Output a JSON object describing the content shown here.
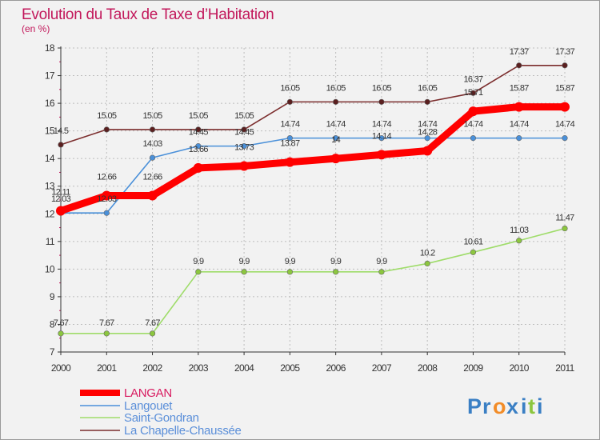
{
  "header": {
    "title": "Evolution du Taux de Taxe d’Habitation",
    "unit": "(en %)"
  },
  "logo": {
    "letters": [
      "P",
      "r",
      "o",
      "x",
      "i",
      "t",
      "i"
    ],
    "colors": [
      "#3a7fc4",
      "#3a7fc4",
      "#f28c28",
      "#3a7fc4",
      "#3a7fc4",
      "#8cc63f",
      "#3a7fc4"
    ]
  },
  "chart_data": {
    "type": "line",
    "title": "Evolution du Taux de Taxe d’Habitation",
    "ylabel": "(en %)",
    "xlabel": "",
    "x": [
      "2000",
      "2001",
      "2002",
      "2003",
      "2004",
      "2005",
      "2006",
      "2007",
      "2008",
      "2009",
      "2010",
      "2011"
    ],
    "ylim": [
      7,
      18
    ],
    "yticks": [
      "7",
      "8",
      "9",
      "10",
      "11",
      "12",
      "13",
      "14",
      "15",
      "16",
      "17",
      "18"
    ],
    "grid": true,
    "legend": "bottom-left",
    "series": [
      {
        "name": "LANGAN",
        "color": "#ff0000",
        "values": [
          12.11,
          12.66,
          12.66,
          13.66,
          13.73,
          13.87,
          14,
          14.14,
          14.28,
          15.71,
          15.87,
          15.87
        ],
        "labels": [
          "12.11",
          "12.66",
          "12.66",
          "13.66",
          "13.73",
          "13.87",
          "14",
          "14.14",
          "14.28",
          "15.71",
          "15.87",
          "15.87"
        ]
      },
      {
        "name": "Langouet",
        "color": "#4a90d9",
        "values": [
          12.03,
          12.03,
          14.03,
          14.45,
          14.45,
          14.74,
          14.74,
          14.74,
          14.74,
          14.74,
          14.74,
          14.74
        ],
        "labels": [
          "12.03",
          "12.03",
          "14.03",
          "14.45",
          "14.45",
          "14.74",
          "14.74",
          "14.74",
          "14.74",
          "14.74",
          "14.74",
          "14.74"
        ]
      },
      {
        "name": "Saint-Gondran",
        "color": "#9fdc6a",
        "values": [
          7.67,
          7.67,
          7.67,
          9.9,
          9.9,
          9.9,
          9.9,
          9.9,
          10.2,
          10.61,
          11.03,
          11.47
        ],
        "labels": [
          "7.67",
          "7.67",
          "7.67",
          "9.9",
          "9.9",
          "9.9",
          "9.9",
          "9.9",
          "10.2",
          "10.61",
          "11.03",
          "11.47"
        ]
      },
      {
        "name": "La Chapelle-Chaussée",
        "color": "#7b2d2d",
        "values": [
          14.5,
          15.05,
          15.05,
          15.05,
          15.05,
          16.05,
          16.05,
          16.05,
          16.05,
          16.37,
          17.37,
          17.37
        ],
        "labels": [
          "14.5",
          "15.05",
          "15.05",
          "15.05",
          "15.05",
          "16.05",
          "16.05",
          "16.05",
          "16.05",
          "16.37",
          "17.37",
          "17.37"
        ]
      }
    ]
  }
}
